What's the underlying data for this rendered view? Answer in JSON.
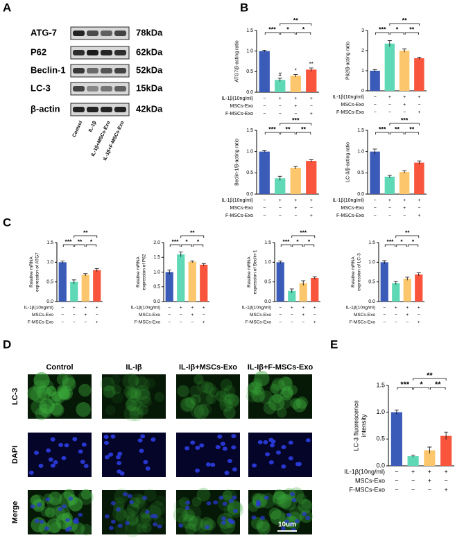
{
  "figure": {
    "panel_letters": [
      "A",
      "B",
      "C",
      "D",
      "E"
    ],
    "blot": {
      "proteins": [
        "ATG-7",
        "P62",
        "Beclin-1",
        "LC-3",
        "β-actin"
      ],
      "sizes": [
        "78kDa",
        "62kDa",
        "52kDa",
        "15kDa",
        "42kDa"
      ],
      "lanes": [
        "Control",
        "IL-1β",
        "IL-1β+MSCs-Exo",
        "IL-1β+F-MSCs-Exo"
      ]
    },
    "microscopy": {
      "columns": [
        "Control",
        "IL-Iβ",
        "IL-Iβ+MSCs-Exo",
        "IL-Iβ+F-MSCs-Exo"
      ],
      "rows": [
        "LC-3",
        "DAPI",
        "Merge"
      ],
      "scale_bar": "10um"
    }
  },
  "chart_data": [
    {
      "type": "bar",
      "ylabel": [
        "ATG7/β-acting ratio"
      ],
      "values": [
        1.0,
        0.3,
        0.4,
        0.55
      ],
      "errors": [
        0.02,
        0.04,
        0.03,
        0.04
      ],
      "bar_labels": [
        null,
        "#",
        "*",
        "**"
      ],
      "colors": [
        "#3b5bb8",
        "#5fd8b6",
        "#fcc66c",
        "#f8553c"
      ],
      "ylim": [
        0,
        1.5
      ],
      "yticks": [
        {
          "value": 0,
          "label": "0.0"
        },
        {
          "value": 0.5,
          "label": "0.5"
        },
        {
          "value": 1,
          "label": "1.0"
        },
        {
          "value": 1.5,
          "label": "1.5"
        }
      ],
      "significance": [
        "***",
        "*",
        "*",
        "**"
      ],
      "conditions": [
        {
          "name": "IL-1β(10ng/ml)",
          "signs": [
            "−",
            "+",
            "+",
            "+"
          ]
        },
        {
          "name": "MSCs-Exo",
          "signs": [
            "−",
            "−",
            "+",
            "−"
          ]
        },
        {
          "name": "F-MSCs-Exo",
          "signs": [
            "−",
            "−",
            "−",
            "+"
          ]
        }
      ]
    },
    {
      "type": "bar",
      "ylabel": [
        "P62/β-acting ratio"
      ],
      "values": [
        1.0,
        2.35,
        2.0,
        1.62
      ],
      "errors": [
        0.06,
        0.15,
        0.08,
        0.05
      ],
      "colors": [
        "#3b5bb8",
        "#5fd8b6",
        "#fcc66c",
        "#f8553c"
      ],
      "ylim": [
        0,
        3
      ],
      "yticks": [
        0,
        1,
        2,
        3
      ],
      "significance": [
        "***",
        "*",
        "**",
        "**"
      ],
      "conditions": [
        {
          "name": "IL-1β(10ng/ml)",
          "signs": [
            "−",
            "+",
            "+",
            "+"
          ]
        },
        {
          "name": "MSCs-Exo",
          "signs": [
            "−",
            "−",
            "+",
            "−"
          ]
        },
        {
          "name": "F-MSCs-Exo",
          "signs": [
            "−",
            "−",
            "−",
            "+"
          ]
        }
      ]
    },
    {
      "type": "bar",
      "ylabel": [
        "Beclin-1/β-acting ratio"
      ],
      "values": [
        1.0,
        0.37,
        0.62,
        0.78
      ],
      "errors": [
        0.02,
        0.05,
        0.03,
        0.03
      ],
      "colors": [
        "#3b5bb8",
        "#5fd8b6",
        "#fcc66c",
        "#f8553c"
      ],
      "ylim": [
        0,
        1.5
      ],
      "yticks": [
        {
          "value": 0,
          "label": "0.0"
        },
        {
          "value": 0.5,
          "label": "0.5"
        },
        {
          "value": 1,
          "label": "1.0"
        },
        {
          "value": 1.5,
          "label": "1.5"
        }
      ],
      "significance": [
        "***",
        "**",
        "**",
        "***"
      ],
      "conditions": [
        {
          "name": "IL-1β(10ng/ml)",
          "signs": [
            "−",
            "+",
            "+",
            "+"
          ]
        },
        {
          "name": "MSCs-Exo",
          "signs": [
            "−",
            "−",
            "+",
            "−"
          ]
        },
        {
          "name": "F-MSCs-Exo",
          "signs": [
            "−",
            "−",
            "−",
            "+"
          ]
        }
      ]
    },
    {
      "type": "bar",
      "ylabel": [
        "LC-3/β-acting ratio"
      ],
      "values": [
        1.0,
        0.41,
        0.52,
        0.74
      ],
      "errors": [
        0.06,
        0.03,
        0.03,
        0.04
      ],
      "colors": [
        "#3b5bb8",
        "#5fd8b6",
        "#fcc66c",
        "#f8553c"
      ],
      "ylim": [
        0,
        1.5
      ],
      "yticks": [
        {
          "value": 0,
          "label": "0.0"
        },
        {
          "value": 0.5,
          "label": "0.5"
        },
        {
          "value": 1,
          "label": "1.0"
        },
        {
          "value": 1.5,
          "label": "1.5"
        }
      ],
      "significance": [
        "***",
        "**",
        "**",
        "***"
      ],
      "conditions": [
        {
          "name": "IL-1β(10ng/ml)",
          "signs": [
            "−",
            "+",
            "+",
            "+"
          ]
        },
        {
          "name": "MSCs-Exo",
          "signs": [
            "−",
            "−",
            "+",
            "−"
          ]
        },
        {
          "name": "F-MSCs-Exo",
          "signs": [
            "−",
            "−",
            "−",
            "+"
          ]
        }
      ]
    },
    {
      "type": "bar",
      "ylabel": [
        "Relative mRNA",
        "expression of ATG7"
      ],
      "values": [
        1.0,
        0.5,
        0.68,
        0.8
      ],
      "errors": [
        0.03,
        0.05,
        0.03,
        0.04
      ],
      "colors": [
        "#3b5bb8",
        "#5fd8b6",
        "#fcc66c",
        "#f8553c"
      ],
      "ylim": [
        0,
        1.5
      ],
      "yticks": [
        {
          "value": 0,
          "label": "0.0"
        },
        {
          "value": 0.5,
          "label": "0.5"
        },
        {
          "value": 1,
          "label": "1.0"
        },
        {
          "value": 1.5,
          "label": "1.5"
        }
      ],
      "significance": [
        "***",
        "**",
        "*",
        "**"
      ],
      "conditions": [
        {
          "name": "IL-1β(10ng/ml)",
          "signs": [
            "−",
            "+",
            "+",
            "+"
          ]
        },
        {
          "name": "MSCs-Exo",
          "signs": [
            "−",
            "−",
            "+",
            "−"
          ]
        },
        {
          "name": "F-MSCs-Exo",
          "signs": [
            "−",
            "−",
            "−",
            "+"
          ]
        }
      ]
    },
    {
      "type": "bar",
      "ylabel": [
        "Relative mRNA",
        "expression of P62"
      ],
      "values": [
        1.0,
        1.6,
        1.35,
        1.25
      ],
      "errors": [
        0.07,
        0.08,
        0.03,
        0.04
      ],
      "colors": [
        "#3b5bb8",
        "#5fd8b6",
        "#fcc66c",
        "#f8553c"
      ],
      "ylim": [
        0,
        2
      ],
      "yticks": [
        {
          "value": 0,
          "label": "0.0"
        },
        {
          "value": 0.5,
          "label": "0.5"
        },
        {
          "value": 1,
          "label": "1.0"
        },
        {
          "value": 1.5,
          "label": "1.5"
        },
        {
          "value": 2,
          "label": "2.0"
        }
      ],
      "significance": [
        "***",
        "*",
        "*",
        "**"
      ],
      "conditions": [
        {
          "name": "IL-1β(10ng/ml)",
          "signs": [
            "−",
            "+",
            "+",
            "+"
          ]
        },
        {
          "name": "MSCs-Exo",
          "signs": [
            "−",
            "−",
            "+",
            "−"
          ]
        },
        {
          "name": "F-MSCs-Exo",
          "signs": [
            "−",
            "−",
            "−",
            "+"
          ]
        }
      ]
    },
    {
      "type": "bar",
      "ylabel": [
        "Relative mRNA",
        "expression of Beclin-1"
      ],
      "values": [
        1.0,
        0.27,
        0.47,
        0.6
      ],
      "errors": [
        0.03,
        0.05,
        0.06,
        0.03
      ],
      "colors": [
        "#3b5bb8",
        "#5fd8b6",
        "#fcc66c",
        "#f8553c"
      ],
      "ylim": [
        0,
        1.5
      ],
      "yticks": [
        {
          "value": 0,
          "label": "0.0"
        },
        {
          "value": 0.5,
          "label": "0.5"
        },
        {
          "value": 1,
          "label": "1.0"
        },
        {
          "value": 1.5,
          "label": "1.5"
        }
      ],
      "significance": [
        "***",
        "*",
        "*",
        "***"
      ],
      "conditions": [
        {
          "name": "IL-1β(10ng/ml)",
          "signs": [
            "−",
            "+",
            "+",
            "+"
          ]
        },
        {
          "name": "MSCs-Exo",
          "signs": [
            "−",
            "−",
            "+",
            "−"
          ]
        },
        {
          "name": "F-MSCs-Exo",
          "signs": [
            "−",
            "−",
            "−",
            "+"
          ]
        }
      ]
    },
    {
      "type": "bar",
      "ylabel": [
        "Relative mRNA",
        "expression of LC-3"
      ],
      "values": [
        1.0,
        0.47,
        0.58,
        0.69
      ],
      "errors": [
        0.04,
        0.04,
        0.04,
        0.04
      ],
      "colors": [
        "#3b5bb8",
        "#5fd8b6",
        "#fcc66c",
        "#f8553c"
      ],
      "ylim": [
        0,
        1.5
      ],
      "yticks": [
        {
          "value": 0,
          "label": "0.0"
        },
        {
          "value": 0.5,
          "label": "0.5"
        },
        {
          "value": 1,
          "label": "1.0"
        },
        {
          "value": 1.5,
          "label": "1.5"
        }
      ],
      "significance": [
        "***",
        "*",
        "*",
        "**"
      ],
      "conditions": [
        {
          "name": "IL-1β(10ng/ml)",
          "signs": [
            "−",
            "+",
            "+",
            "+"
          ]
        },
        {
          "name": "MSCs-Exo",
          "signs": [
            "−",
            "−",
            "+",
            "−"
          ]
        },
        {
          "name": "F-MSCs-Exo",
          "signs": [
            "−",
            "−",
            "−",
            "+"
          ]
        }
      ]
    },
    {
      "type": "bar",
      "ylabel": [
        "LC-3 fluorescence",
        "intensity"
      ],
      "values": [
        1.0,
        0.18,
        0.29,
        0.56
      ],
      "errors": [
        0.04,
        0.02,
        0.06,
        0.07
      ],
      "colors": [
        "#3b5bb8",
        "#5fd8b6",
        "#fcc66c",
        "#f8553c"
      ],
      "ylim": [
        0,
        1.5
      ],
      "yticks": [
        {
          "value": 0,
          "label": "0.0"
        },
        {
          "value": 0.5,
          "label": "0.5"
        },
        {
          "value": 1,
          "label": "1.0"
        },
        {
          "value": 1.5,
          "label": "1.5"
        }
      ],
      "significance": [
        "***",
        "*",
        "**",
        "**"
      ],
      "conditions": [
        {
          "name": "IL-1β(10ng/ml)",
          "signs": [
            "−",
            "+",
            "+",
            "+"
          ]
        },
        {
          "name": "MSCs-Exo",
          "signs": [
            "−",
            "−",
            "+",
            "−"
          ]
        },
        {
          "name": "F-MSCs-Exo",
          "signs": [
            "−",
            "−",
            "−",
            "+"
          ]
        }
      ]
    }
  ]
}
